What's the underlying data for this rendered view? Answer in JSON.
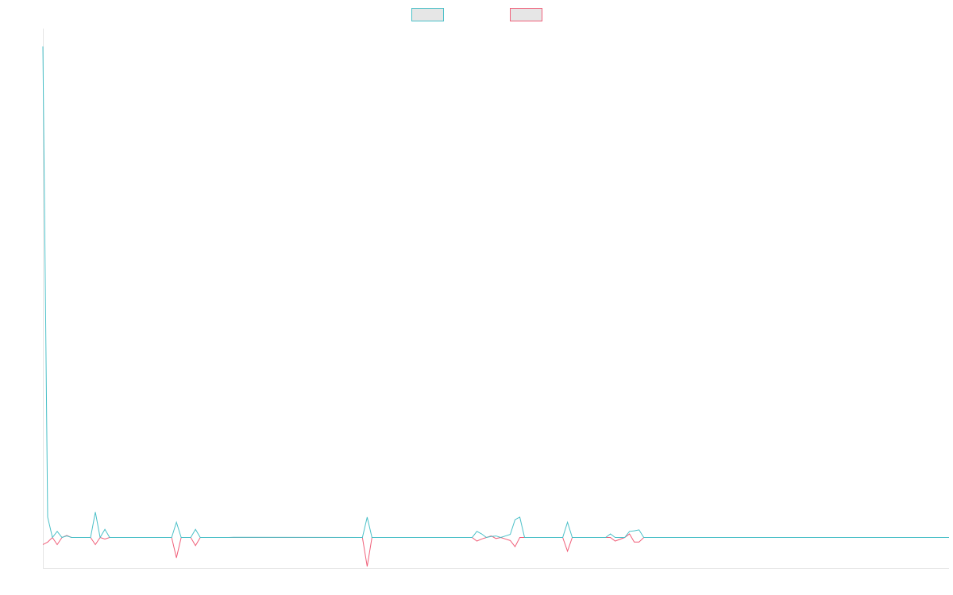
{
  "chart_data": {
    "type": "line",
    "title": "",
    "xlabel": "",
    "ylabel": "",
    "grid": false,
    "legend": "top-center",
    "ylim": [
      -6,
      100
    ],
    "xlim": [
      0,
      190
    ],
    "series": [
      {
        "name": "",
        "color": "#4bc0c8",
        "swatch_fill": "#e6e6e6",
        "x": [
          0,
          1,
          2,
          3,
          4,
          5,
          6,
          7,
          8,
          9,
          10,
          11,
          12,
          13,
          14,
          15,
          27,
          28,
          29,
          31,
          32,
          33,
          39,
          40,
          67,
          68,
          69,
          90,
          91,
          92,
          93,
          94,
          95,
          96,
          97,
          98,
          99,
          100,
          101,
          102,
          103,
          109,
          110,
          111,
          118,
          119,
          120,
          122,
          123,
          124,
          125,
          126,
          190
        ],
        "y": [
          96.5,
          4,
          0,
          1.2,
          0,
          0.3,
          0,
          0,
          0,
          0,
          0,
          5,
          0,
          1.6,
          0,
          0,
          0,
          3,
          0,
          0,
          1.6,
          0,
          0,
          0.05,
          0,
          4,
          0,
          0,
          1.2,
          0.7,
          0,
          0.2,
          0.3,
          0,
          0.3,
          0.6,
          3.5,
          4,
          0,
          0,
          0,
          0,
          3,
          0,
          0,
          0.7,
          0,
          0,
          1.2,
          1.3,
          1.5,
          0,
          0
        ]
      },
      {
        "name": "",
        "color": "#f0607a",
        "swatch_fill": "#e6e6e6",
        "x": [
          0,
          1,
          2,
          3,
          4,
          5,
          6,
          7,
          8,
          9,
          10,
          11,
          12,
          13,
          14,
          15,
          27,
          28,
          29,
          31,
          32,
          33,
          39,
          40,
          67,
          68,
          69,
          90,
          91,
          92,
          93,
          94,
          95,
          96,
          97,
          98,
          99,
          100,
          101,
          102,
          103,
          109,
          110,
          111,
          118,
          119,
          120,
          122,
          123,
          124,
          125,
          126,
          190
        ],
        "y": [
          -1.4,
          -0.9,
          0,
          -1.4,
          0,
          0.4,
          0,
          0,
          0,
          0,
          0,
          -1.4,
          0,
          -0.3,
          0,
          0,
          0,
          -4,
          0,
          0,
          -1.6,
          0,
          0,
          0,
          0,
          -5.7,
          0,
          0,
          -0.7,
          -0.3,
          0,
          0.3,
          -0.2,
          0,
          -0.3,
          -0.6,
          -1.8,
          0,
          0,
          0,
          0,
          0,
          -2.7,
          0,
          0,
          0,
          -0.7,
          0,
          0.7,
          -0.9,
          -0.9,
          0,
          0
        ]
      }
    ]
  }
}
